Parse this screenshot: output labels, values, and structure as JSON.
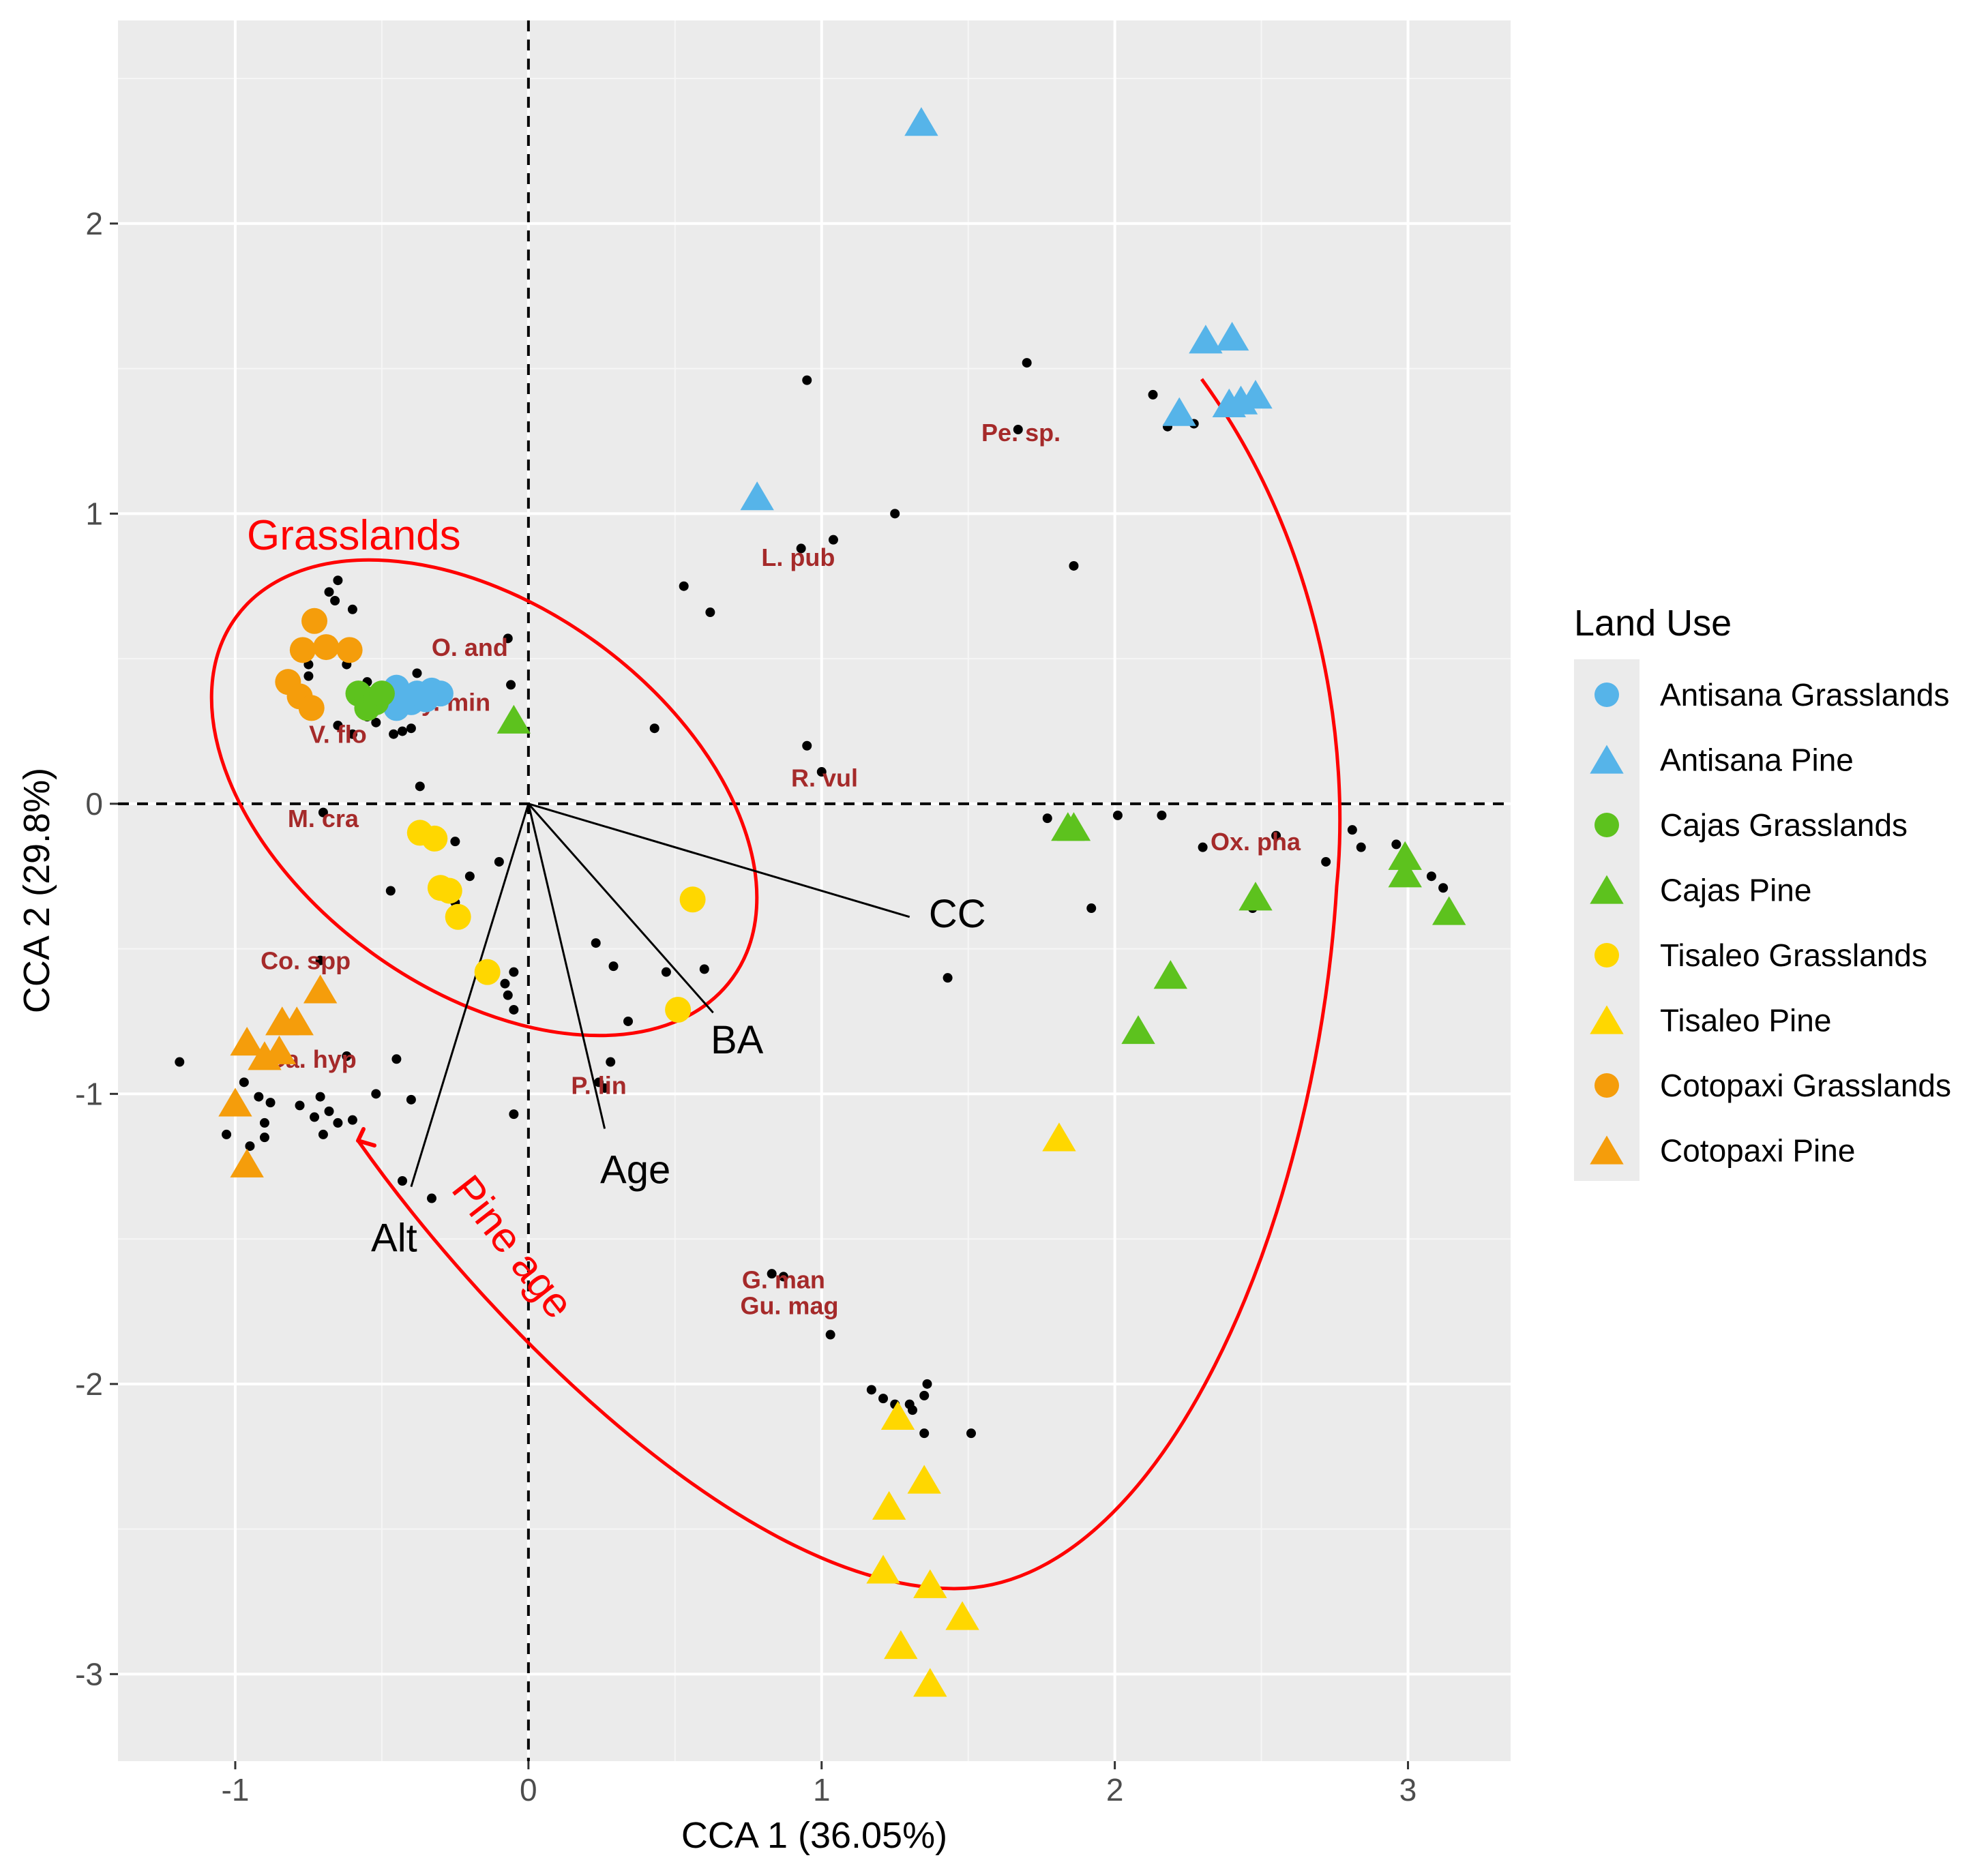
{
  "chart_data": {
    "type": "scatter",
    "title": "",
    "xlabel": "CCA 1 (36.05%)",
    "ylabel": "CCA 2 (29.8%)",
    "xlim": [
      -1.4,
      3.35
    ],
    "ylim": [
      -3.3,
      2.7
    ],
    "xticks": [
      -1,
      0,
      1,
      2,
      3
    ],
    "yticks": [
      -3,
      -2,
      -1,
      0,
      1,
      2
    ],
    "xtick_labels": [
      "-1",
      "0",
      "1",
      "2",
      "3"
    ],
    "ytick_labels": [
      "-3",
      "-2",
      "-1",
      "0",
      "1",
      "2"
    ],
    "grid": true,
    "reference_lines": {
      "x": 0,
      "y": 0,
      "style": "dashed"
    },
    "legend": {
      "title": "Land  Use",
      "position": "right",
      "entries": [
        {
          "label": "Antisana Grasslands",
          "color": "#56b4e9",
          "shape": "circle"
        },
        {
          "label": "Antisana Pine",
          "color": "#56b4e9",
          "shape": "triangle"
        },
        {
          "label": "Cajas Grasslands",
          "color": "#5dc21e",
          "shape": "circle"
        },
        {
          "label": "Cajas Pine",
          "color": "#5dc21e",
          "shape": "triangle"
        },
        {
          "label": "Tisaleo Grasslands",
          "color": "#ffd700",
          "shape": "circle"
        },
        {
          "label": "Tisaleo Pine",
          "color": "#ffd700",
          "shape": "triangle"
        },
        {
          "label": "Cotopaxi Grasslands",
          "color": "#f59d0b",
          "shape": "circle"
        },
        {
          "label": "Cotopaxi Pine",
          "color": "#f59d0b",
          "shape": "triangle"
        }
      ]
    },
    "sites": [
      {
        "group": "Antisana Grasslands",
        "shape": "circle",
        "color": "#56b4e9",
        "points": [
          [
            -0.45,
            0.4
          ],
          [
            -0.42,
            0.37
          ],
          [
            -0.38,
            0.38
          ],
          [
            -0.33,
            0.39
          ],
          [
            -0.3,
            0.38
          ],
          [
            -0.45,
            0.33
          ],
          [
            -0.4,
            0.35
          ],
          [
            -0.35,
            0.36
          ]
        ]
      },
      {
        "group": "Antisana Pine",
        "shape": "triangle",
        "color": "#56b4e9",
        "points": [
          [
            1.34,
            2.34
          ],
          [
            0.78,
            1.05
          ],
          [
            2.31,
            1.59
          ],
          [
            2.4,
            1.6
          ],
          [
            2.22,
            1.34
          ],
          [
            2.39,
            1.37
          ],
          [
            2.43,
            1.38
          ],
          [
            2.48,
            1.4
          ]
        ]
      },
      {
        "group": "Cajas Grasslands",
        "shape": "circle",
        "color": "#5dc21e",
        "points": [
          [
            -0.58,
            0.38
          ],
          [
            -0.55,
            0.36
          ],
          [
            -0.55,
            0.33
          ],
          [
            -0.52,
            0.35
          ],
          [
            -0.5,
            0.38
          ]
        ]
      },
      {
        "group": "Cajas Pine",
        "shape": "triangle",
        "color": "#5dc21e",
        "points": [
          [
            -0.05,
            0.28
          ],
          [
            1.84,
            -0.09
          ],
          [
            1.86,
            -0.09
          ],
          [
            2.48,
            -0.33
          ],
          [
            2.99,
            -0.19
          ],
          [
            2.99,
            -0.25
          ],
          [
            3.14,
            -0.38
          ],
          [
            2.19,
            -0.6
          ],
          [
            2.08,
            -0.79
          ]
        ]
      },
      {
        "group": "Tisaleo Grasslands",
        "shape": "circle",
        "color": "#ffd700",
        "points": [
          [
            -0.37,
            -0.1
          ],
          [
            -0.32,
            -0.12
          ],
          [
            -0.3,
            -0.29
          ],
          [
            -0.27,
            -0.3
          ],
          [
            -0.24,
            -0.39
          ],
          [
            -0.14,
            -0.58
          ],
          [
            0.56,
            -0.33
          ],
          [
            0.51,
            -0.71
          ]
        ]
      },
      {
        "group": "Tisaleo Pine",
        "shape": "triangle",
        "color": "#ffd700",
        "points": [
          [
            1.81,
            -1.16
          ],
          [
            1.26,
            -2.12
          ],
          [
            1.35,
            -2.34
          ],
          [
            1.23,
            -2.43
          ],
          [
            1.21,
            -2.65
          ],
          [
            1.37,
            -2.7
          ],
          [
            1.48,
            -2.81
          ],
          [
            1.27,
            -2.91
          ],
          [
            1.37,
            -3.04
          ]
        ]
      },
      {
        "group": "Cotopaxi Grasslands",
        "shape": "circle",
        "color": "#f59d0b",
        "points": [
          [
            -0.73,
            0.63
          ],
          [
            -0.77,
            0.53
          ],
          [
            -0.69,
            0.54
          ],
          [
            -0.61,
            0.53
          ],
          [
            -0.82,
            0.42
          ],
          [
            -0.78,
            0.37
          ],
          [
            -0.74,
            0.33
          ]
        ]
      },
      {
        "group": "Cotopaxi Pine",
        "shape": "triangle",
        "color": "#f59d0b",
        "points": [
          [
            -0.71,
            -0.65
          ],
          [
            -0.84,
            -0.76
          ],
          [
            -0.79,
            -0.76
          ],
          [
            -0.96,
            -0.83
          ],
          [
            -0.9,
            -0.88
          ],
          [
            -0.85,
            -0.86
          ],
          [
            -1.0,
            -1.04
          ],
          [
            -0.96,
            -1.25
          ]
        ]
      }
    ],
    "species_points": [
      [
        -0.65,
        0.77
      ],
      [
        -0.68,
        0.73
      ],
      [
        -0.66,
        0.7
      ],
      [
        -0.6,
        0.67
      ],
      [
        -0.75,
        0.48
      ],
      [
        -0.75,
        0.44
      ],
      [
        -0.62,
        0.48
      ],
      [
        -0.55,
        0.42
      ],
      [
        -0.6,
        0.39
      ],
      [
        -0.55,
        0.3
      ],
      [
        -0.52,
        0.28
      ],
      [
        -0.65,
        0.27
      ],
      [
        -0.6,
        0.24
      ],
      [
        -0.46,
        0.24
      ],
      [
        -0.43,
        0.25
      ],
      [
        -0.4,
        0.26
      ],
      [
        -0.28,
        0.36
      ],
      [
        -0.38,
        0.45
      ],
      [
        -0.07,
        0.57
      ],
      [
        -0.06,
        0.41
      ],
      [
        0.43,
        0.26
      ],
      [
        0.53,
        0.75
      ],
      [
        0.62,
        0.66
      ],
      [
        0.95,
        1.46
      ],
      [
        0.93,
        0.88
      ],
      [
        1.04,
        0.91
      ],
      [
        1.25,
        1.0
      ],
      [
        0.95,
        0.2
      ],
      [
        1.0,
        0.11
      ],
      [
        1.7,
        1.52
      ],
      [
        1.67,
        1.29
      ],
      [
        1.86,
        0.82
      ],
      [
        2.13,
        1.41
      ],
      [
        2.18,
        1.3
      ],
      [
        2.27,
        1.31
      ],
      [
        -0.37,
        0.06
      ],
      [
        -0.7,
        -0.03
      ],
      [
        -0.3,
        -0.13
      ],
      [
        -0.25,
        -0.13
      ],
      [
        -0.2,
        -0.25
      ],
      [
        -0.1,
        -0.2
      ],
      [
        -0.25,
        -0.34
      ],
      [
        -0.47,
        -0.3
      ],
      [
        -0.05,
        -0.58
      ],
      [
        -0.08,
        -0.62
      ],
      [
        -0.07,
        -0.66
      ],
      [
        -0.05,
        -0.71
      ],
      [
        0.23,
        -0.48
      ],
      [
        0.29,
        -0.56
      ],
      [
        0.47,
        -0.58
      ],
      [
        0.34,
        -0.75
      ],
      [
        0.24,
        -0.96
      ],
      [
        0.26,
        -0.98
      ],
      [
        0.28,
        -0.89
      ],
      [
        0.6,
        -0.57
      ],
      [
        -0.71,
        -0.54
      ],
      [
        -1.19,
        -0.89
      ],
      [
        -0.97,
        -0.96
      ],
      [
        -0.92,
        -1.01
      ],
      [
        -0.88,
        -1.03
      ],
      [
        -0.78,
        -1.04
      ],
      [
        -0.71,
        -1.01
      ],
      [
        -0.62,
        -0.87
      ],
      [
        -0.52,
        -1.0
      ],
      [
        -0.4,
        -1.02
      ],
      [
        -0.45,
        -0.88
      ],
      [
        -0.73,
        -1.08
      ],
      [
        -0.68,
        -1.06
      ],
      [
        -0.9,
        -1.1
      ],
      [
        -0.95,
        -1.18
      ],
      [
        -1.03,
        -1.14
      ],
      [
        -0.9,
        -1.15
      ],
      [
        -0.6,
        -1.09
      ],
      [
        -0.65,
        -1.1
      ],
      [
        -0.7,
        -1.14
      ],
      [
        -0.05,
        -1.07
      ],
      [
        -0.33,
        -1.36
      ],
      [
        -0.43,
        -1.3
      ],
      [
        0.83,
        -1.62
      ],
      [
        0.87,
        -1.63
      ],
      [
        1.03,
        -1.83
      ],
      [
        1.17,
        -2.02
      ],
      [
        1.21,
        -2.05
      ],
      [
        1.25,
        -2.07
      ],
      [
        1.3,
        -2.07
      ],
      [
        1.31,
        -2.09
      ],
      [
        1.35,
        -2.04
      ],
      [
        1.36,
        -2.0
      ],
      [
        1.35,
        -2.17
      ],
      [
        1.51,
        -2.17
      ],
      [
        1.43,
        -0.6
      ],
      [
        1.77,
        -0.05
      ],
      [
        1.92,
        -0.36
      ],
      [
        2.01,
        -0.04
      ],
      [
        2.16,
        -0.04
      ],
      [
        2.3,
        -0.15
      ],
      [
        2.47,
        -0.36
      ],
      [
        2.55,
        -0.11
      ],
      [
        2.72,
        -0.2
      ],
      [
        2.81,
        -0.09
      ],
      [
        2.84,
        -0.15
      ],
      [
        2.96,
        -0.14
      ],
      [
        3.08,
        -0.25
      ],
      [
        3.12,
        -0.29
      ]
    ],
    "species_labels": [
      {
        "label": "Pe. sp.",
        "x": 1.68,
        "y": 1.25
      },
      {
        "label": "L. pub",
        "x": 0.92,
        "y": 0.82
      },
      {
        "label": "O. and",
        "x": -0.2,
        "y": 0.51
      },
      {
        "label": "Gy. min",
        "x": -0.28,
        "y": 0.32
      },
      {
        "label": "V. flo",
        "x": -0.65,
        "y": 0.21
      },
      {
        "label": "R. vul",
        "x": 1.01,
        "y": 0.06
      },
      {
        "label": "M. cra",
        "x": -0.7,
        "y": -0.08
      },
      {
        "label": "Ox. pha",
        "x": 2.48,
        "y": -0.16
      },
      {
        "label": "Co. spp",
        "x": -0.76,
        "y": -0.57
      },
      {
        "label": "Ga. hyp",
        "x": -0.74,
        "y": -0.91
      },
      {
        "label": "P. lin",
        "x": 0.24,
        "y": -1.0
      },
      {
        "label": "G. man",
        "x": 0.87,
        "y": -1.67
      },
      {
        "label": "Gu. mag",
        "x": 0.89,
        "y": -1.76
      }
    ],
    "env_vectors": [
      {
        "label": "CC",
        "x": 1.3,
        "y": -0.39
      },
      {
        "label": "BA",
        "x": 0.63,
        "y": -0.72
      },
      {
        "label": "Age",
        "x": 0.26,
        "y": -1.12
      },
      {
        "label": "Alt",
        "x": -0.4,
        "y": -1.32
      }
    ],
    "annotations": [
      {
        "label": "Grasslands",
        "type": "ellipse",
        "color": "#ff0000"
      },
      {
        "label": "Pine age",
        "type": "arrow",
        "color": "#ff0000"
      }
    ]
  }
}
